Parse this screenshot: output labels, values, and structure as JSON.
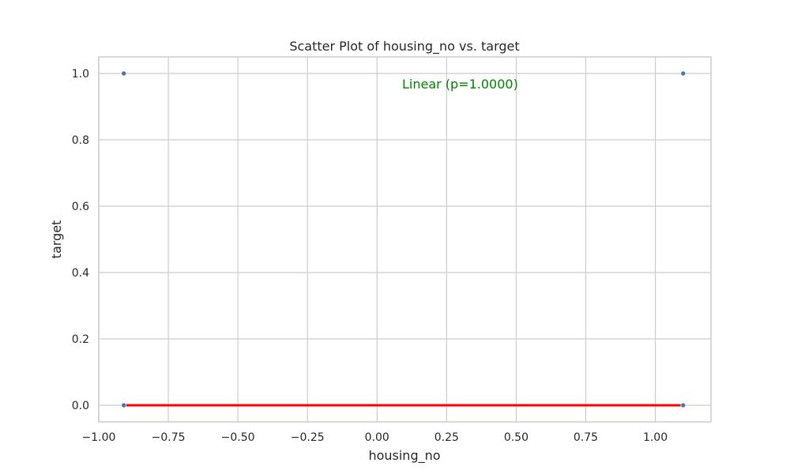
{
  "chart_data": {
    "type": "scatter",
    "title": "Scatter Plot of housing_no vs. target",
    "xlabel": "housing_no",
    "ylabel": "target",
    "xlim": [
      -1.0,
      1.2
    ],
    "ylim": [
      -0.05,
      1.05
    ],
    "xticks": [
      -1.0,
      -0.75,
      -0.5,
      -0.25,
      0.0,
      0.25,
      0.5,
      0.75,
      1.0
    ],
    "xtick_labels": [
      "−1.00",
      "−0.75",
      "−0.50",
      "−0.25",
      "0.00",
      "0.25",
      "0.50",
      "0.75",
      "1.00"
    ],
    "yticks": [
      0.0,
      0.2,
      0.4,
      0.6,
      0.8,
      1.0
    ],
    "ytick_labels": [
      "0.0",
      "0.2",
      "0.4",
      "0.6",
      "0.8",
      "1.0"
    ],
    "grid": true,
    "points": [
      {
        "x": -0.91,
        "y": 1.0
      },
      {
        "x": 1.1,
        "y": 1.0
      },
      {
        "x": -0.91,
        "y": 0.0
      },
      {
        "x": 1.1,
        "y": 0.0
      }
    ],
    "fit_line": {
      "x": [
        -0.91,
        1.1
      ],
      "y": [
        0.0,
        0.0
      ]
    },
    "annotation": {
      "text": "Linear (p=1.0000)",
      "x": 0.09,
      "y": 0.955
    },
    "colors": {
      "points": "#4c72b0",
      "fit_line": "#ff0000",
      "annotation": "#008000"
    }
  }
}
